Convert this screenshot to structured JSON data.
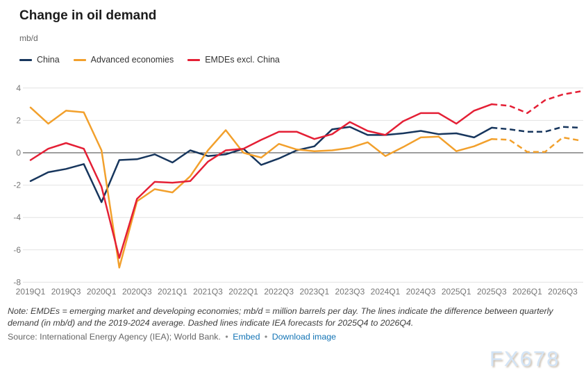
{
  "title": "Change in oil demand",
  "unit_label": "mb/d",
  "note": "Note: EMDEs = emerging market and developing economies; mb/d = million barrels per day. The lines indicate the difference between quarterly demand (in mb/d) and the 2019-2024 average. Dashed lines indicate IEA forecasts for 2025Q4 to 2026Q4.",
  "source": {
    "prefix": "Source: International Energy Agency (IEA); World Bank.",
    "separator": "•",
    "link_color": "#1374b5",
    "links": [
      {
        "label": "Embed"
      },
      {
        "label": "Download image"
      }
    ]
  },
  "watermark": "FX678",
  "chart_data": {
    "type": "line",
    "title": "Change in oil demand",
    "ylabel": "mb/d",
    "ylim": [
      -8,
      4
    ],
    "y_ticks": [
      4,
      2,
      0,
      -2,
      -4,
      -6,
      -8
    ],
    "grid": "horizontal",
    "legend_position": "top-left",
    "x_tick_step": 2,
    "forecast_start_index": 26,
    "forecast_note": "Dashed segments are IEA forecasts for 2025Q4 to 2026Q4",
    "x_labels": [
      "2019Q1",
      "2019Q2",
      "2019Q3",
      "2019Q4",
      "2020Q1",
      "2020Q2",
      "2020Q3",
      "2020Q4",
      "2021Q1",
      "2021Q2",
      "2021Q3",
      "2021Q4",
      "2022Q1",
      "2022Q2",
      "2022Q3",
      "2022Q4",
      "2023Q1",
      "2023Q2",
      "2023Q3",
      "2023Q4",
      "2024Q1",
      "2024Q2",
      "2024Q3",
      "2024Q4",
      "2025Q1",
      "2025Q2",
      "2025Q3",
      "2025Q4",
      "2026Q1",
      "2026Q2",
      "2026Q3",
      "2026Q4"
    ],
    "series": [
      {
        "name": "China",
        "color": "#17365d",
        "values": [
          -1.75,
          -1.2,
          -1.0,
          -0.7,
          -3.05,
          -0.45,
          -0.4,
          -0.1,
          -0.6,
          0.15,
          -0.2,
          -0.1,
          0.25,
          -0.75,
          -0.35,
          0.15,
          0.4,
          1.45,
          1.6,
          1.1,
          1.1,
          1.2,
          1.35,
          1.15,
          1.2,
          0.95,
          1.55,
          1.45,
          1.3,
          1.3,
          1.6,
          1.55
        ]
      },
      {
        "name": "Advanced economies",
        "color": "#f2a02c",
        "values": [
          2.8,
          1.8,
          2.6,
          2.5,
          0.15,
          -7.1,
          -3.0,
          -2.25,
          -2.45,
          -1.45,
          0.15,
          1.4,
          0.0,
          -0.3,
          0.55,
          0.2,
          0.1,
          0.15,
          0.3,
          0.65,
          -0.2,
          0.35,
          0.95,
          1.0,
          0.1,
          0.4,
          0.85,
          0.8,
          0.05,
          0.05,
          0.95,
          0.75
        ]
      },
      {
        "name": "EMDEs excl. China",
        "color": "#e41f35",
        "values": [
          -0.45,
          0.25,
          0.6,
          0.25,
          -2.1,
          -6.5,
          -2.85,
          -1.8,
          -1.85,
          -1.75,
          -0.55,
          0.15,
          0.25,
          0.8,
          1.3,
          1.3,
          0.85,
          1.15,
          1.9,
          1.35,
          1.1,
          1.95,
          2.45,
          2.45,
          1.8,
          2.6,
          3.0,
          2.9,
          2.45,
          3.25,
          3.6,
          3.8
        ]
      }
    ]
  }
}
